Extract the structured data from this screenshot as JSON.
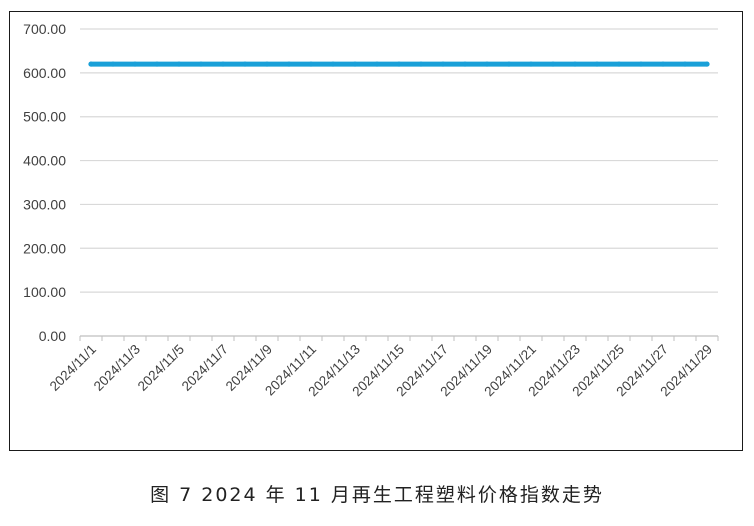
{
  "caption": "图 7 2024 年 11 月再生工程塑料价格指数走势",
  "colors": {
    "series": "#1aa0d8",
    "grid": "#d9d9d9",
    "axis": "#bfbfbf",
    "text": "#404040"
  },
  "chart_data": {
    "type": "line",
    "title": "",
    "xlabel": "",
    "ylabel": "",
    "ylim": [
      0,
      700
    ],
    "yticks": [
      "0.00",
      "100.00",
      "200.00",
      "300.00",
      "400.00",
      "500.00",
      "600.00",
      "700.00"
    ],
    "ytick_values": [
      0,
      100,
      200,
      300,
      400,
      500,
      600,
      700
    ],
    "grid": true,
    "legend": "none",
    "x": [
      "2024/11/1",
      "2024/11/2",
      "2024/11/3",
      "2024/11/4",
      "2024/11/5",
      "2024/11/6",
      "2024/11/7",
      "2024/11/8",
      "2024/11/9",
      "2024/11/10",
      "2024/11/11",
      "2024/11/12",
      "2024/11/13",
      "2024/11/14",
      "2024/11/15",
      "2024/11/16",
      "2024/11/17",
      "2024/11/18",
      "2024/11/19",
      "2024/11/20",
      "2024/11/21",
      "2024/11/22",
      "2024/11/23",
      "2024/11/24",
      "2024/11/25",
      "2024/11/26",
      "2024/11/27",
      "2024/11/28",
      "2024/11/29"
    ],
    "xtick_labels": [
      "2024/11/1",
      "2024/11/3",
      "2024/11/5",
      "2024/11/7",
      "2024/11/9",
      "2024/11/11",
      "2024/11/13",
      "2024/11/15",
      "2024/11/17",
      "2024/11/19",
      "2024/11/21",
      "2024/11/23",
      "2024/11/25",
      "2024/11/27",
      "2024/11/29"
    ],
    "series": [
      {
        "values": [
          620,
          620,
          620,
          620,
          620,
          620,
          620,
          620,
          620,
          620,
          620,
          620,
          620,
          620,
          620,
          620,
          620,
          620,
          620,
          620,
          620,
          620,
          620,
          620,
          620,
          620,
          620,
          620,
          620
        ]
      }
    ]
  }
}
